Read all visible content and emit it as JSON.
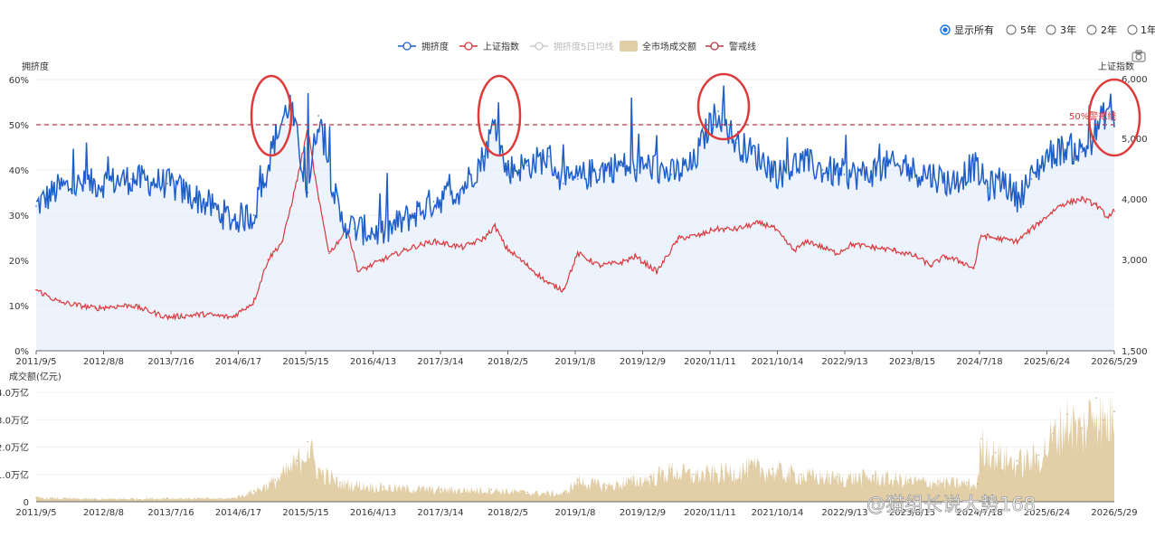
{
  "range_selector": {
    "options": [
      "显示所有",
      "5年",
      "3年",
      "2年",
      "1年"
    ],
    "selected": "显示所有"
  },
  "watermark": "@猫组长说大势168",
  "colors": {
    "crowding": "#1f5fc8",
    "index": "#d9393c",
    "ma5": "#c8c8c8",
    "turnover": "#e2cfa8",
    "warning": "#b03a48",
    "circle": "#dd3b3b",
    "area_fill": "#e6eefb"
  },
  "chart_data": [
    {
      "type": "line",
      "legend": [
        "拥挤度",
        "上证指数",
        "拥挤度5日均线",
        "全市场成交额",
        "警戒线"
      ],
      "x_ticks": [
        "2011/9/5",
        "2012/8/8",
        "2013/7/16",
        "2014/6/17",
        "2015/5/15",
        "2016/4/13",
        "2017/3/14",
        "2018/2/5",
        "2019/1/8",
        "2019/12/9",
        "2020/11/11",
        "2021/10/14",
        "2022/9/13",
        "2023/8/15",
        "2024/7/18",
        "2025/6/24",
        "2026/5/29"
      ],
      "y_left": {
        "label": "拥挤度",
        "ticks": [
          "0%",
          "10%",
          "20%",
          "30%",
          "40%",
          "50%",
          "60%"
        ],
        "range": [
          0,
          60
        ]
      },
      "y_right": {
        "label": "上证指数",
        "ticks": [
          "1,500",
          "3,000",
          "4,000",
          "5,000",
          "6,000"
        ],
        "range": [
          1500,
          6000
        ]
      },
      "warning_line": {
        "value": 50,
        "label": "50%警戒线"
      },
      "highlighted_peaks": [
        "2015/5/15",
        "2018/2/5",
        "2020/11/11",
        "2026/5/29"
      ],
      "series": [
        {
          "name": "拥挤度",
          "x": [
            2011.68,
            2012.0,
            2012.5,
            2013.0,
            2013.5,
            2014.0,
            2014.4,
            2014.7,
            2015.0,
            2015.2,
            2015.45,
            2015.6,
            2015.9,
            2016.1,
            2016.5,
            2016.9,
            2017.2,
            2017.6,
            2017.9,
            2018.05,
            2018.2,
            2018.5,
            2018.8,
            2019.0,
            2019.2,
            2019.5,
            2019.8,
            2020.0,
            2020.2,
            2020.5,
            2020.8,
            2021.0,
            2021.15,
            2021.4,
            2021.7,
            2022.0,
            2022.3,
            2022.6,
            2022.9,
            2023.2,
            2023.5,
            2023.8,
            2024.1,
            2024.4,
            2024.7,
            2024.9,
            2025.1,
            2025.3,
            2025.5,
            2025.7,
            2026.0,
            2026.2,
            2026.35,
            2026.5,
            2026.6,
            2026.65
          ],
          "values": [
            32,
            36,
            37,
            38,
            37,
            33,
            29,
            30,
            47,
            55,
            35,
            52,
            29,
            27,
            26,
            30,
            33,
            36,
            43,
            51,
            40,
            41,
            43,
            37,
            38,
            40,
            41,
            40,
            41,
            39,
            41,
            49,
            53,
            46,
            43,
            39,
            42,
            40,
            39,
            39,
            41,
            40,
            39,
            37,
            41,
            36,
            38,
            34,
            38,
            43,
            45,
            44,
            47,
            52,
            54,
            51
          ]
        },
        {
          "name": "上证指数",
          "x": [
            2011.68,
            2012.0,
            2012.5,
            2013.0,
            2013.5,
            2014.0,
            2014.4,
            2014.7,
            2014.9,
            2015.1,
            2015.3,
            2015.45,
            2015.6,
            2015.75,
            2016.0,
            2016.15,
            2016.5,
            2016.9,
            2017.2,
            2017.6,
            2017.9,
            2018.05,
            2018.2,
            2018.5,
            2018.8,
            2019.0,
            2019.2,
            2019.5,
            2019.8,
            2020.0,
            2020.3,
            2020.6,
            2020.9,
            2021.1,
            2021.4,
            2021.7,
            2021.9,
            2022.2,
            2022.4,
            2022.8,
            2023.0,
            2023.3,
            2023.6,
            2023.9,
            2024.1,
            2024.3,
            2024.55,
            2024.7,
            2024.8,
            2025.0,
            2025.3,
            2025.6,
            2025.9,
            2026.2,
            2026.4,
            2026.55,
            2026.65
          ],
          "values": [
            2500,
            2300,
            2200,
            2250,
            2050,
            2100,
            2050,
            2300,
            3000,
            3300,
            4300,
            5150,
            4000,
            3100,
            3500,
            2800,
            3000,
            3200,
            3300,
            3200,
            3350,
            3550,
            3200,
            2900,
            2600,
            2500,
            3100,
            2900,
            2950,
            3050,
            2800,
            3350,
            3400,
            3500,
            3500,
            3600,
            3550,
            3150,
            3300,
            3100,
            3250,
            3200,
            3150,
            3050,
            2900,
            3050,
            2950,
            2850,
            3400,
            3350,
            3300,
            3600,
            3900,
            4000,
            3900,
            3700,
            3800
          ]
        }
      ]
    },
    {
      "type": "area",
      "title": "成交额(亿元)",
      "series_name": "全市场成交额",
      "y_ticks": [
        "0",
        "1.0万亿",
        "2.0万亿",
        "3.0万亿",
        "4.0万亿"
      ],
      "ylim": [
        0,
        40000
      ],
      "x": [
        2011.68,
        2012.5,
        2013.5,
        2014.4,
        2014.7,
        2015.0,
        2015.3,
        2015.45,
        2015.6,
        2015.9,
        2016.5,
        2017.3,
        2018.0,
        2018.5,
        2019.0,
        2019.2,
        2019.6,
        2020.2,
        2020.5,
        2020.8,
        2021.2,
        2021.6,
        2021.9,
        2022.3,
        2022.8,
        2023.3,
        2023.8,
        2024.2,
        2024.6,
        2024.75,
        2024.8,
        2025.0,
        2025.3,
        2025.6,
        2025.8,
        2026.0,
        2026.2,
        2026.4,
        2026.5,
        2026.65
      ],
      "values": [
        1500,
        1000,
        1300,
        1200,
        4000,
        8000,
        15000,
        22000,
        12000,
        7000,
        5500,
        4500,
        4500,
        3500,
        3000,
        8000,
        6000,
        9000,
        12000,
        10000,
        11000,
        13000,
        12000,
        10000,
        9000,
        9500,
        8000,
        7500,
        7000,
        6500,
        23000,
        18000,
        15000,
        17000,
        25000,
        32000,
        27000,
        38000,
        30000,
        33000
      ]
    }
  ]
}
